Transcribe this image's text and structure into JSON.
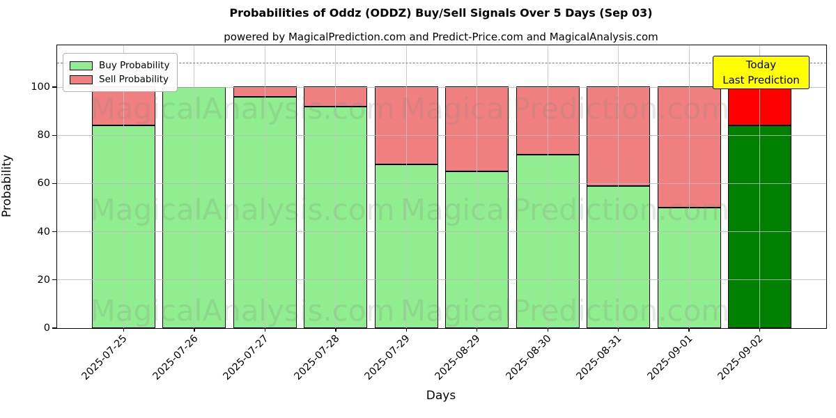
{
  "title": "Probabilities of Oddz (ODDZ) Buy/Sell Signals Over 5 Days (Sep 03)",
  "subtitle": "powered by MagicalPrediction.com and Predict-Price.com and MagicalAnalysis.com",
  "watermarks": {
    "left_text": "MagicalAnalysis.com",
    "right_text": "MagicalPrediction.com"
  },
  "legend": {
    "items": [
      {
        "label": "Buy Probability",
        "color": "#90EE90"
      },
      {
        "label": "Sell Probability",
        "color": "#F08080"
      }
    ]
  },
  "annotation_box": {
    "line1": "Today",
    "line2": "Last Prediction",
    "bg_color": "#FFFF00"
  },
  "axes": {
    "xlabel": "Days",
    "ylabel": "Probability",
    "yticks": [
      0,
      20,
      40,
      60,
      80,
      100
    ],
    "ylim": [
      0,
      117
    ],
    "dashed_guide_y": 110,
    "grid": true,
    "grid_color": "#b0b0b0"
  },
  "chart_data": {
    "type": "bar",
    "stacked": true,
    "categories": [
      "2025-07-25",
      "2025-07-26",
      "2025-07-27",
      "2025-07-28",
      "2025-07-29",
      "2025-08-29",
      "2025-08-30",
      "2025-08-31",
      "2025-09-01",
      "2025-09-02"
    ],
    "series": [
      {
        "name": "Buy Probability",
        "color": "#90EE90",
        "values": [
          84,
          100,
          96,
          92,
          68,
          65,
          72,
          59,
          50,
          84
        ]
      },
      {
        "name": "Sell Probability",
        "color": "#F08080",
        "values": [
          16,
          0,
          4,
          8,
          32,
          35,
          28,
          41,
          50,
          16
        ]
      }
    ],
    "highlight_last_bar": {
      "index": 9,
      "buy_color": "#008000",
      "sell_color": "#FF0000",
      "note": "Today / Last Prediction"
    },
    "bar_edge_color": "#000000",
    "legend_position": "upper left"
  }
}
